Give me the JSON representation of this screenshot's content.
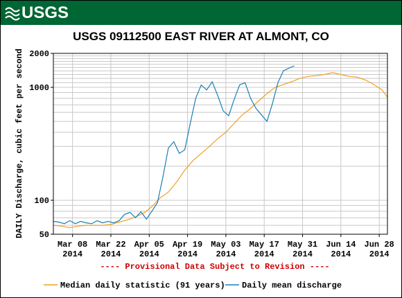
{
  "header": {
    "brand": "USGS",
    "title": "USGS 09112500 EAST RIVER AT ALMONT, CO"
  },
  "notice": "---- Provisional Data Subject to Revision ----",
  "colors": {
    "banner": "#006633",
    "median": "#f0a020",
    "mean": "#1a7fb5",
    "notice": "#cc0000"
  },
  "chart_data": {
    "type": "line",
    "ylabel": "DAILY Discharge, cubic feet per second",
    "y_scale": "log",
    "ylim": [
      50,
      2000
    ],
    "y_ticks": [
      {
        "value": 50,
        "label": "50"
      },
      {
        "value": 100,
        "label": "100"
      },
      {
        "value": 1000,
        "label": "1000"
      },
      {
        "value": 2000,
        "label": "2000"
      }
    ],
    "xlim": [
      "2014-03-01",
      "2014-07-01"
    ],
    "x_ticks": [
      {
        "date": "2014-03-08",
        "label": "Mar 08",
        "year": "2014"
      },
      {
        "date": "2014-03-22",
        "label": "Mar 22",
        "year": "2014"
      },
      {
        "date": "2014-04-05",
        "label": "Apr 05",
        "year": "2014"
      },
      {
        "date": "2014-04-19",
        "label": "Apr 19",
        "year": "2014"
      },
      {
        "date": "2014-05-03",
        "label": "May 03",
        "year": "2014"
      },
      {
        "date": "2014-05-17",
        "label": "May 17",
        "year": "2014"
      },
      {
        "date": "2014-05-31",
        "label": "May 31",
        "year": "2014"
      },
      {
        "date": "2014-06-14",
        "label": "Jun 14",
        "year": "2014"
      },
      {
        "date": "2014-06-28",
        "label": "Jun 28",
        "year": "2014"
      }
    ],
    "grid": true,
    "legend_position": "bottom",
    "series": [
      {
        "name": "Median daily statistic (91 years)",
        "color": "#f0a020",
        "points": [
          [
            "2014-03-01",
            60
          ],
          [
            "2014-03-04",
            59
          ],
          [
            "2014-03-07",
            57
          ],
          [
            "2014-03-10",
            59
          ],
          [
            "2014-03-13",
            60
          ],
          [
            "2014-03-16",
            60
          ],
          [
            "2014-03-19",
            60
          ],
          [
            "2014-03-22",
            61
          ],
          [
            "2014-03-25",
            64
          ],
          [
            "2014-03-28",
            67
          ],
          [
            "2014-03-31",
            71
          ],
          [
            "2014-04-03",
            77
          ],
          [
            "2014-04-06",
            88
          ],
          [
            "2014-04-09",
            105
          ],
          [
            "2014-04-12",
            118
          ],
          [
            "2014-04-15",
            145
          ],
          [
            "2014-04-18",
            185
          ],
          [
            "2014-04-21",
            225
          ],
          [
            "2014-04-24",
            260
          ],
          [
            "2014-04-27",
            300
          ],
          [
            "2014-04-30",
            350
          ],
          [
            "2014-05-03",
            400
          ],
          [
            "2014-05-06",
            480
          ],
          [
            "2014-05-09",
            570
          ],
          [
            "2014-05-12",
            650
          ],
          [
            "2014-05-15",
            760
          ],
          [
            "2014-05-18",
            880
          ],
          [
            "2014-05-21",
            1000
          ],
          [
            "2014-05-24",
            1060
          ],
          [
            "2014-05-27",
            1120
          ],
          [
            "2014-05-30",
            1200
          ],
          [
            "2014-06-02",
            1250
          ],
          [
            "2014-06-05",
            1270
          ],
          [
            "2014-06-08",
            1300
          ],
          [
            "2014-06-11",
            1350
          ],
          [
            "2014-06-14",
            1300
          ],
          [
            "2014-06-17",
            1250
          ],
          [
            "2014-06-20",
            1230
          ],
          [
            "2014-06-23",
            1160
          ],
          [
            "2014-06-26",
            1060
          ],
          [
            "2014-06-29",
            950
          ],
          [
            "2014-07-01",
            820
          ]
        ]
      },
      {
        "name": "Daily mean discharge",
        "color": "#1a7fb5",
        "points": [
          [
            "2014-03-01",
            65
          ],
          [
            "2014-03-03",
            64
          ],
          [
            "2014-03-05",
            62
          ],
          [
            "2014-03-07",
            66
          ],
          [
            "2014-03-09",
            62
          ],
          [
            "2014-03-11",
            65
          ],
          [
            "2014-03-13",
            63
          ],
          [
            "2014-03-15",
            62
          ],
          [
            "2014-03-17",
            66
          ],
          [
            "2014-03-19",
            63
          ],
          [
            "2014-03-21",
            65
          ],
          [
            "2014-03-23",
            63
          ],
          [
            "2014-03-25",
            66
          ],
          [
            "2014-03-27",
            75
          ],
          [
            "2014-03-29",
            78
          ],
          [
            "2014-03-31",
            70
          ],
          [
            "2014-04-02",
            79
          ],
          [
            "2014-04-04",
            68
          ],
          [
            "2014-04-06",
            80
          ],
          [
            "2014-04-08",
            95
          ],
          [
            "2014-04-10",
            160
          ],
          [
            "2014-04-12",
            290
          ],
          [
            "2014-04-14",
            330
          ],
          [
            "2014-04-16",
            260
          ],
          [
            "2014-04-18",
            280
          ],
          [
            "2014-04-20",
            480
          ],
          [
            "2014-04-22",
            800
          ],
          [
            "2014-04-24",
            1050
          ],
          [
            "2014-04-26",
            950
          ],
          [
            "2014-04-28",
            1120
          ],
          [
            "2014-04-30",
            850
          ],
          [
            "2014-05-02",
            620
          ],
          [
            "2014-05-04",
            560
          ],
          [
            "2014-05-06",
            780
          ],
          [
            "2014-05-08",
            1050
          ],
          [
            "2014-05-10",
            1100
          ],
          [
            "2014-05-12",
            800
          ],
          [
            "2014-05-14",
            650
          ],
          [
            "2014-05-16",
            570
          ],
          [
            "2014-05-18",
            500
          ],
          [
            "2014-05-20",
            720
          ],
          [
            "2014-05-22",
            1100
          ],
          [
            "2014-05-24",
            1400
          ],
          [
            "2014-05-26",
            1480
          ],
          [
            "2014-05-28",
            1550
          ]
        ]
      }
    ]
  }
}
